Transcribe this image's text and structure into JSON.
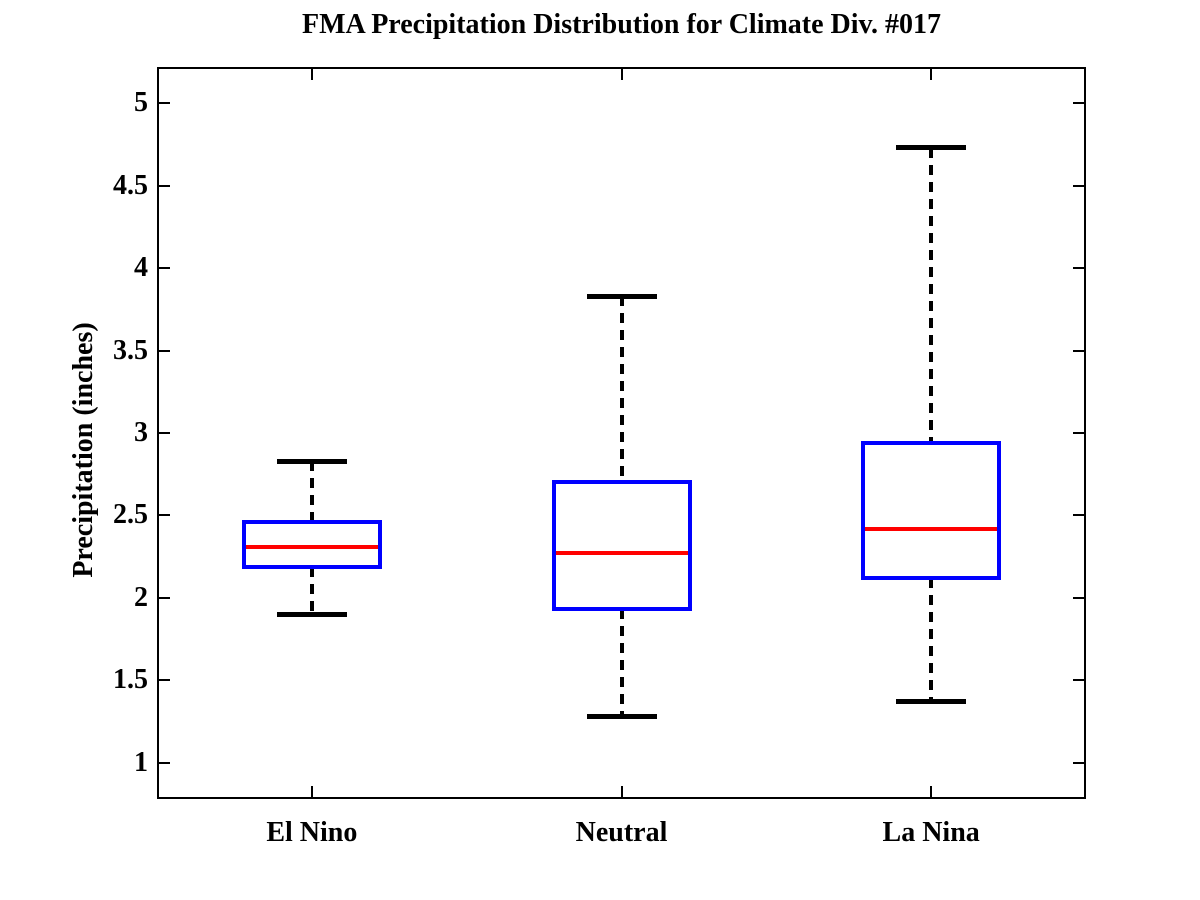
{
  "chart_data": {
    "type": "boxplot",
    "title": "FMA Precipitation Distribution for Climate Div. #017",
    "xlabel": "",
    "ylabel": "Precipitation (inches)",
    "categories": [
      "El Nino",
      "Neutral",
      "La Nina"
    ],
    "ylim": [
      0.78,
      5.22
    ],
    "yticks": [
      1,
      1.5,
      2,
      2.5,
      3,
      3.5,
      4,
      4.5,
      5
    ],
    "grid": false,
    "legend": "none",
    "series": [
      {
        "name": "El Nino",
        "whisker_low": 1.9,
        "q1": 2.19,
        "median": 2.31,
        "q3": 2.46,
        "whisker_high": 2.83
      },
      {
        "name": "Neutral",
        "whisker_low": 1.28,
        "q1": 1.93,
        "median": 2.27,
        "q3": 2.7,
        "whisker_high": 3.83
      },
      {
        "name": "La Nina",
        "whisker_low": 1.37,
        "q1": 2.12,
        "median": 2.42,
        "q3": 2.94,
        "whisker_high": 4.73
      }
    ],
    "colors": {
      "box": "#0000ff",
      "median": "#ff0000",
      "whisker": "#000000",
      "axis": "#000000",
      "background": "#ffffff"
    }
  }
}
